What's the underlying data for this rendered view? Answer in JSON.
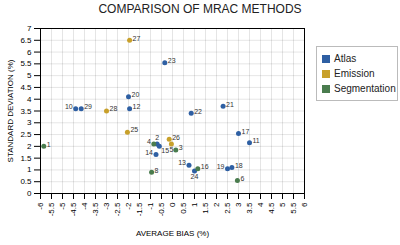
{
  "chart_data": {
    "type": "scatter",
    "title": "COMPARISON OF MRAC METHODS",
    "xlabel": "AVERAGE BIAS (%)",
    "ylabel": "STANDARD DEVIATION (%)",
    "xlim": [
      -6,
      6
    ],
    "ylim": [
      0,
      7
    ],
    "xticks": [
      -6,
      -5.5,
      -5,
      -4.5,
      -4,
      -3.5,
      -3,
      -2.5,
      -2,
      -1.5,
      -1,
      -0.5,
      0,
      0.5,
      1,
      1.5,
      2,
      2.5,
      3,
      3.5,
      4,
      4.5,
      5,
      5.5,
      6
    ],
    "yticks": [
      0,
      0.5,
      1,
      1.5,
      2,
      2.5,
      3,
      3.5,
      4,
      4.5,
      5,
      5.5,
      6,
      6.5,
      7
    ],
    "grid": true,
    "legend": "right",
    "series": [
      {
        "name": "Atlas",
        "color": "#2e5fa3",
        "x": [
          -4.4,
          -4.15,
          -1.95,
          -2.0,
          -0.7,
          -0.6,
          -0.75,
          0.75,
          -0.35,
          0.85,
          1.0,
          2.3,
          2.5,
          2.7,
          3.0,
          3.5
        ],
        "y": [
          3.6,
          3.6,
          3.6,
          4.1,
          2.1,
          2.0,
          1.65,
          1.2,
          5.55,
          3.4,
          0.95,
          3.7,
          1.05,
          1.1,
          2.55,
          2.15
        ],
        "labels": [
          "10",
          "29",
          "12",
          "20",
          "2",
          "15",
          "14",
          "13",
          "23",
          "22",
          "24",
          "21",
          "19",
          "18",
          "17",
          "11"
        ]
      },
      {
        "name": "Emission",
        "color": "#c8a02a",
        "x": [
          -3.0,
          -1.95,
          -2.05,
          -0.15,
          -0.05
        ],
        "y": [
          3.5,
          6.5,
          2.6,
          2.3,
          2.1
        ],
        "labels": [
          "28",
          "27",
          "25",
          "26",
          "5"
        ]
      },
      {
        "name": "Segmentation",
        "color": "#4a7c4e",
        "x": [
          -5.85,
          -0.95,
          -0.85,
          0.15,
          1.15,
          2.95
        ],
        "y": [
          2.0,
          0.9,
          2.1,
          1.85,
          1.05,
          0.55
        ],
        "labels": [
          "1",
          "8",
          "4",
          "3",
          "16",
          "6"
        ]
      }
    ]
  }
}
